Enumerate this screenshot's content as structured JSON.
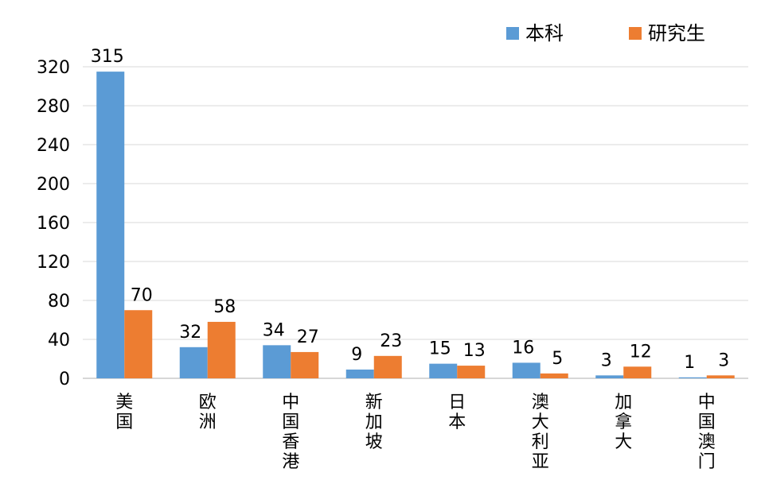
{
  "chart_data": {
    "type": "bar",
    "categories": [
      "美国",
      "欧洲",
      "中国香港",
      "新加坡",
      "日本",
      "澳大利亚",
      "加拿大",
      "中国澳门"
    ],
    "series": [
      {
        "name": "本科",
        "values": [
          315,
          32,
          34,
          9,
          15,
          16,
          3,
          1
        ],
        "color": "#5b9bd5"
      },
      {
        "name": "研究生",
        "values": [
          70,
          58,
          27,
          23,
          13,
          5,
          12,
          3
        ],
        "color": "#ed7d31"
      }
    ],
    "ylim": [
      0,
      320
    ],
    "yticks": [
      0,
      40,
      80,
      120,
      160,
      200,
      240,
      280,
      320
    ],
    "ytick_labels": [
      "0",
      "40",
      "80",
      "120",
      "160",
      "200",
      "240",
      "280",
      "320"
    ],
    "grid": true,
    "legend_position": "top-right",
    "title": "",
    "xlabel": "",
    "ylabel": ""
  }
}
